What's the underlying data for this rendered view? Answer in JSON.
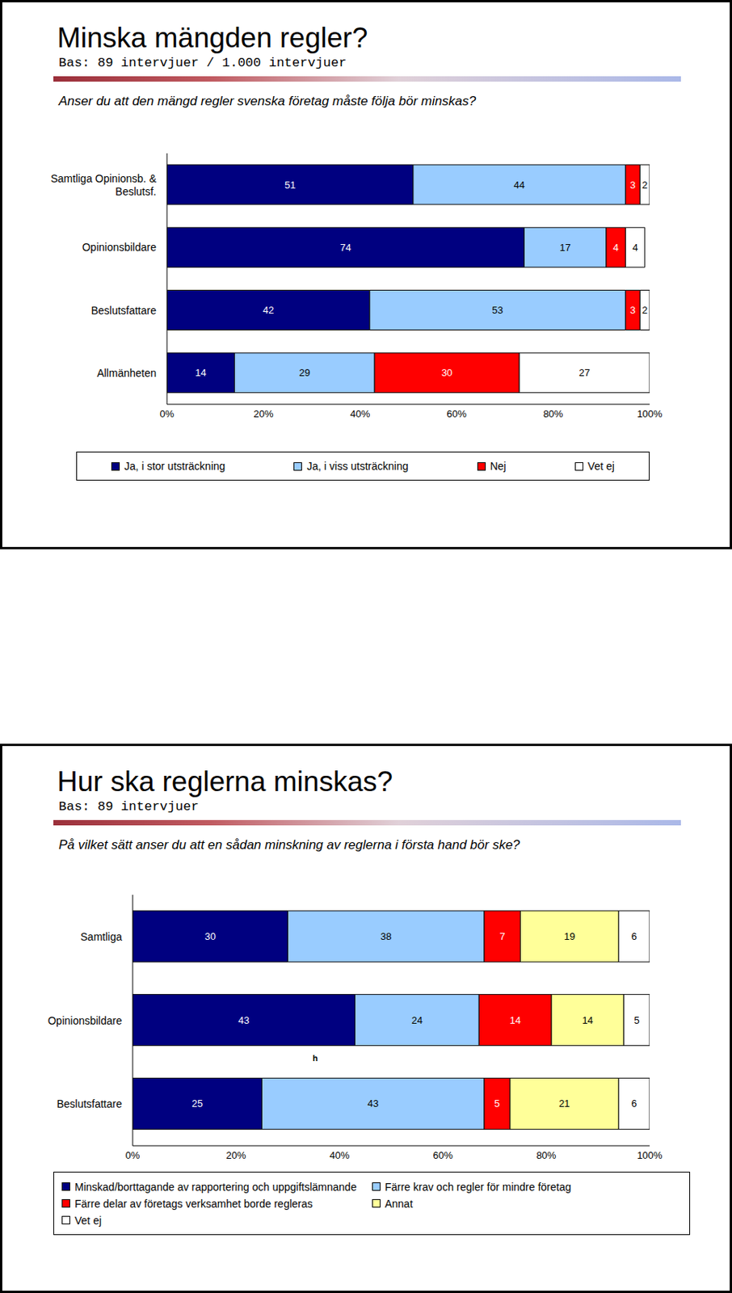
{
  "chart_data": [
    {
      "type": "bar",
      "title": "Minska mängden regler?",
      "subtitle": "Bas: 89 intervjuer / 1.000 intervjuer",
      "annotations": [
        "Anser du att den mängd regler svenska företag måste följa bör minskas?"
      ],
      "orientation": "horizontal",
      "stacked": true,
      "data_labels": true,
      "categories": [
        "Samtliga Opinionsb. & Beslutsf.",
        "Opinionsbildare",
        "Beslutsfattare",
        "Allmänheten"
      ],
      "series": [
        {
          "name": "Ja, i stor utsträckning",
          "color": "#000080",
          "values": [
            51,
            74,
            42,
            14
          ]
        },
        {
          "name": "Ja, i viss utsträckning",
          "color": "#99CCFF",
          "values": [
            44,
            17,
            53,
            29
          ]
        },
        {
          "name": "Nej",
          "color": "#FF0000",
          "values": [
            3,
            4,
            3,
            30
          ]
        },
        {
          "name": "Vet ej",
          "color": "#FFFFFF",
          "values": [
            2,
            4,
            2,
            27
          ]
        }
      ],
      "xlim": [
        0,
        100
      ],
      "xticks": [
        {
          "value": 0,
          "label": "0%"
        },
        {
          "value": 20,
          "label": "20%"
        },
        {
          "value": 40,
          "label": "40%"
        },
        {
          "value": 60,
          "label": "60%"
        },
        {
          "value": 80,
          "label": "80%"
        },
        {
          "value": 100,
          "label": "100%"
        }
      ]
    },
    {
      "type": "bar",
      "title": "Hur ska reglerna minskas?",
      "subtitle": "Bas: 89 intervjuer",
      "annotations": [
        "På vilket sätt anser du att en sådan minskning av reglerna i första hand bör ske?",
        "h"
      ],
      "orientation": "horizontal",
      "stacked": true,
      "data_labels": true,
      "categories": [
        "Samtliga",
        "Opinionsbildare",
        "Beslutsfattare"
      ],
      "series": [
        {
          "name": "Minskad/borttagande av rapportering och uppgiftslämnande",
          "color": "#000080",
          "values": [
            30,
            43,
            25
          ]
        },
        {
          "name": "Färre krav och regler för mindre företag",
          "color": "#99CCFF",
          "values": [
            38,
            24,
            43
          ]
        },
        {
          "name": "Färre delar av företags verksamhet borde regleras",
          "color": "#FF0000",
          "values": [
            7,
            14,
            5
          ]
        },
        {
          "name": "Annat",
          "color": "#FFFF99",
          "values": [
            19,
            14,
            21
          ]
        },
        {
          "name": "Vet ej",
          "color": "#FFFFFF",
          "values": [
            6,
            5,
            6
          ]
        }
      ],
      "xlim": [
        0,
        100
      ],
      "xticks": [
        {
          "value": 0,
          "label": "0%"
        },
        {
          "value": 20,
          "label": "20%"
        },
        {
          "value": 40,
          "label": "40%"
        },
        {
          "value": 60,
          "label": "60%"
        },
        {
          "value": 80,
          "label": "80%"
        },
        {
          "value": 100,
          "label": "100%"
        }
      ]
    }
  ]
}
